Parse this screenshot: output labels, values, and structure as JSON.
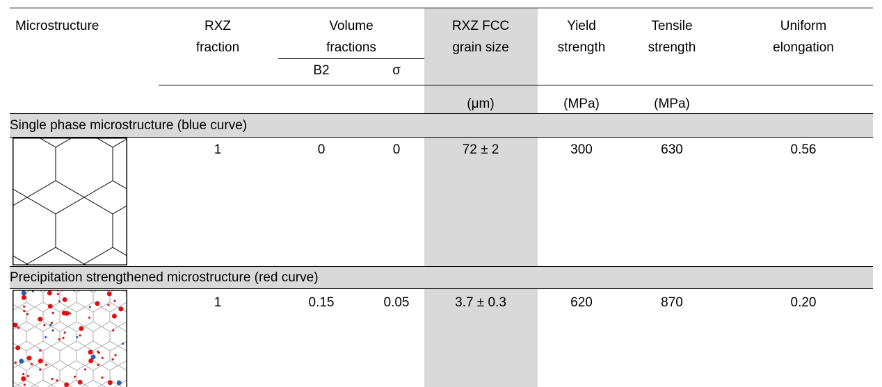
{
  "table": {
    "header": [
      "Microstructure",
      "RXZ fraction",
      "Volume fractions",
      "RXZ FCC grain size",
      "Yield strength",
      "Tensile strength",
      "Uniform elongation"
    ],
    "subheader": [
      "B2",
      "σ"
    ],
    "units": [
      "(μm)",
      "(MPa)",
      "(MPa)"
    ],
    "sections": [
      {
        "title": "Single phase microstructure (blue curve)",
        "row": [
          "1",
          "0",
          "0",
          "72 ± 2",
          "300",
          "630",
          "0.56"
        ]
      },
      {
        "title": "Precipitation strengthened microstructure (red curve)",
        "row": [
          "1",
          "0.15",
          "0.05",
          "3.7 ± 0.3",
          "620",
          "870",
          "0.20"
        ]
      }
    ]
  }
}
